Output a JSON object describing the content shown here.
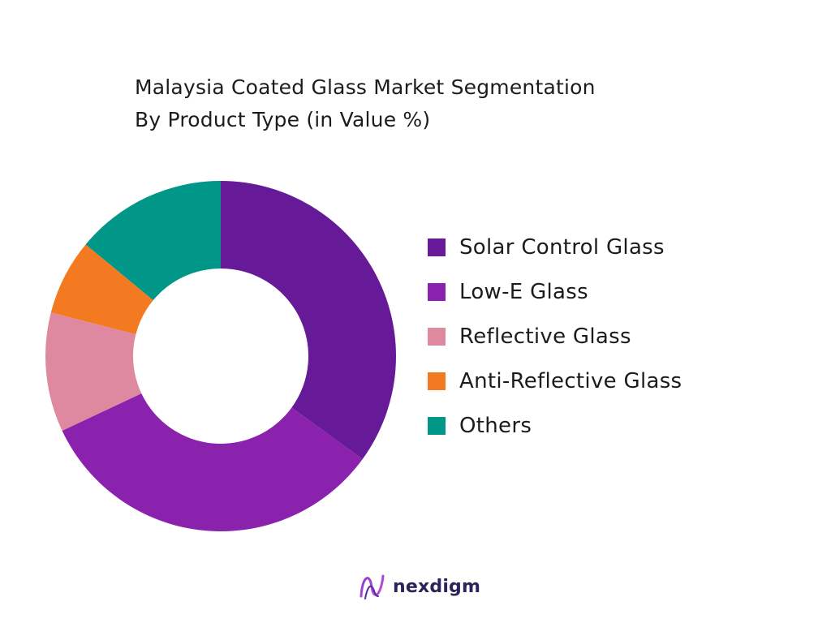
{
  "header": {
    "title_line1": "Malaysia Coated Glass Market Segmentation",
    "title_line2": "By Product Type (in Value %)"
  },
  "chart_data": {
    "type": "pie",
    "variant": "donut",
    "title": "Malaysia Coated Glass Market Segmentation By Product Type (in Value %)",
    "categories": [
      "Solar Control Glass",
      "Low-E Glass",
      "Reflective Glass",
      "Anti-Reflective Glass",
      "Others"
    ],
    "values": [
      35,
      33,
      11,
      7,
      14
    ],
    "colors": [
      "#671a98",
      "#8b22ae",
      "#de89a0",
      "#f47a21",
      "#009688"
    ],
    "legend_position": "right",
    "start_angle_deg": 0,
    "direction": "clockwise"
  },
  "branding": {
    "name": "nexdigm",
    "logo_icon": "nexdigm-logo-icon"
  }
}
